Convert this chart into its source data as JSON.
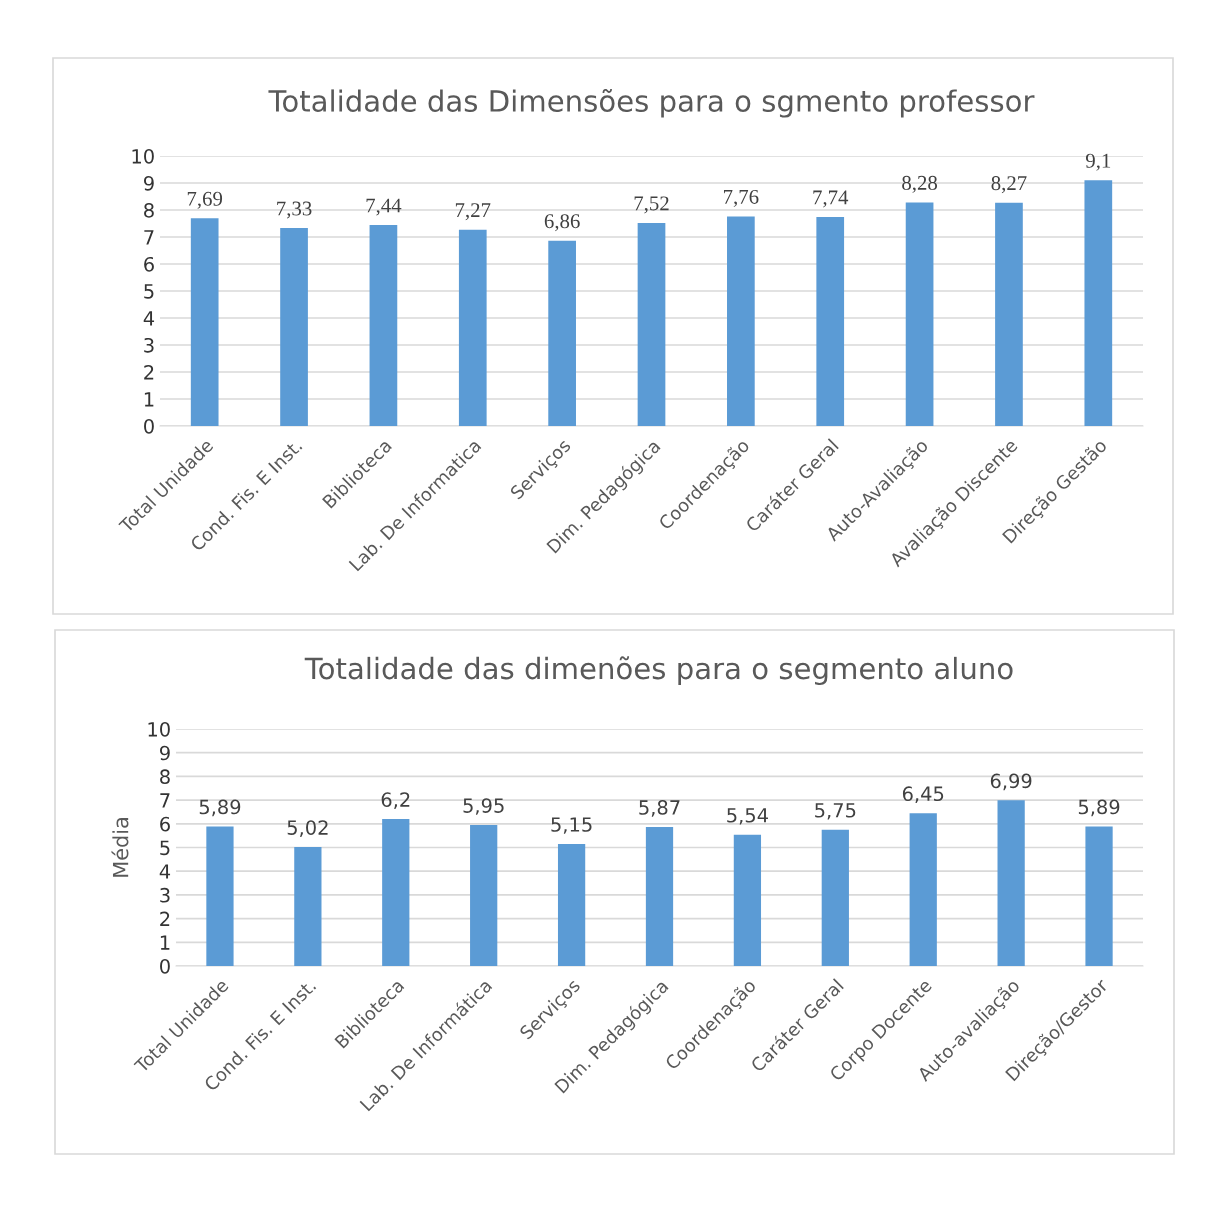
{
  "chart_data": [
    {
      "type": "bar",
      "title": "Totalidade das Dimensões para o sgmento professor",
      "categories": [
        "Total Unidade",
        "Cond. Fis. E Inst.",
        "Biblioteca",
        "Lab. De Informatica",
        "Serviços",
        "Dim. Pedagógica",
        "Coordenação",
        "Caráter Geral",
        "Auto-Avaliação",
        "Avaliação Discente",
        "Direção Gestão"
      ],
      "values": [
        7.69,
        7.33,
        7.44,
        7.27,
        6.86,
        7.52,
        7.76,
        7.74,
        8.28,
        8.27,
        9.1
      ],
      "value_labels": [
        "7,69",
        "7,33",
        "7,44",
        "7,27",
        "6,86",
        "7,52",
        "7,76",
        "7,74",
        "8,28",
        "8,27",
        "9,1"
      ],
      "color": "#5b9bd5",
      "ylim": [
        0,
        10
      ],
      "yticks": [
        0,
        1,
        2,
        3,
        4,
        5,
        6,
        7,
        8,
        9,
        10
      ],
      "grid": "y",
      "legend": false
    },
    {
      "type": "bar",
      "title": "Totalidade das dimenões para o segmento aluno",
      "ylabel": "Média",
      "categories": [
        "Total Unidade",
        "Cond. Fis. E Inst.",
        "Biblioteca",
        "Lab. De Informática",
        "Serviços",
        "Dim. Pedagógica",
        "Coordenação",
        "Caráter Geral",
        "Corpo Docente",
        "Auto-avaliação",
        "Direção/Gestor"
      ],
      "values": [
        5.89,
        5.02,
        6.2,
        5.95,
        5.15,
        5.87,
        5.54,
        5.75,
        6.45,
        6.99,
        5.89
      ],
      "value_labels": [
        "5,89",
        "5,02",
        "6,2",
        "5,95",
        "5,15",
        "5,87",
        "5,54",
        "5,75",
        "6,45",
        "6,99",
        "5,89"
      ],
      "color": "#5b9bd5",
      "ylim": [
        0,
        10
      ],
      "yticks": [
        0,
        1,
        2,
        3,
        4,
        5,
        6,
        7,
        8,
        9,
        10
      ],
      "grid": "y",
      "legend": false
    }
  ]
}
